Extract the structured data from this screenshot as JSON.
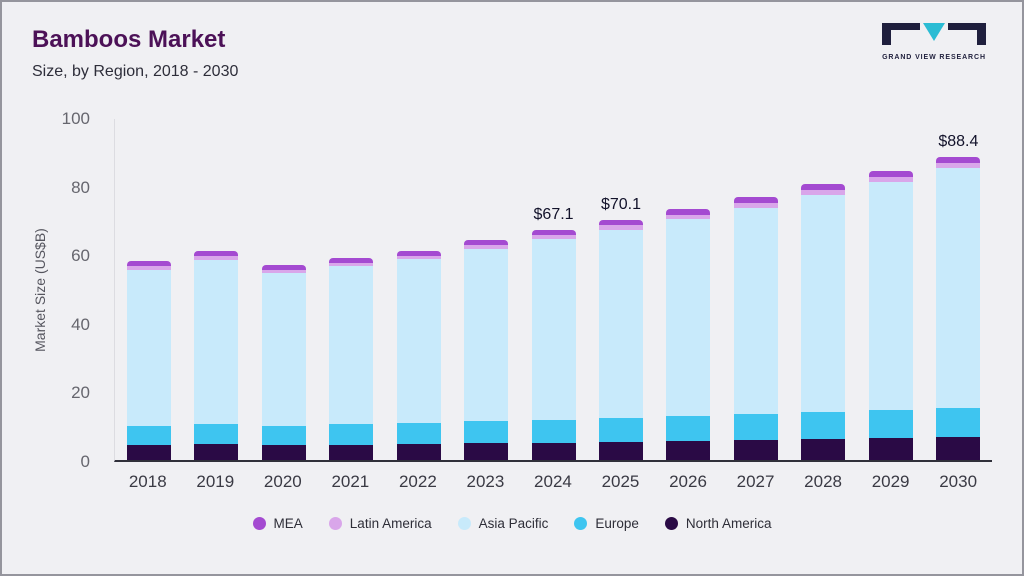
{
  "header": {
    "title": "Bamboos Market",
    "subtitle": "Size, by Region, 2018 - 2030"
  },
  "logo": {
    "text": "GRAND VIEW RESEARCH"
  },
  "chart_data": {
    "type": "bar",
    "stacked": true,
    "title": "Bamboos Market Size, by Region, 2018 - 2030",
    "ylabel": "Market Size (US$B)",
    "ylim": [
      0,
      100
    ],
    "yticks": [
      0,
      20,
      40,
      60,
      80,
      100
    ],
    "grid": false,
    "legend_position": "bottom",
    "categories": [
      "2018",
      "2019",
      "2020",
      "2021",
      "2022",
      "2023",
      "2024",
      "2025",
      "2026",
      "2027",
      "2028",
      "2029",
      "2030"
    ],
    "series": [
      {
        "name": "North America",
        "color": "#2a0a45",
        "values": [
          4.4,
          4.6,
          4.3,
          4.5,
          4.7,
          4.9,
          5.1,
          5.3,
          5.5,
          5.8,
          6.0,
          6.3,
          6.6
        ]
      },
      {
        "name": "Europe",
        "color": "#3ec5f0",
        "values": [
          5.6,
          5.9,
          5.7,
          5.9,
          6.1,
          6.4,
          6.7,
          7.0,
          7.3,
          7.6,
          7.9,
          8.2,
          8.6
        ]
      },
      {
        "name": "Asia Pacific",
        "color": "#c8eafb",
        "values": [
          45.5,
          47.9,
          44.5,
          46.1,
          47.7,
          50.2,
          52.5,
          54.9,
          57.4,
          60.2,
          63.5,
          66.5,
          70.0
        ]
      },
      {
        "name": "Latin America",
        "color": "#d9a6ea",
        "values": [
          1.0,
          1.1,
          1.0,
          1.0,
          1.1,
          1.2,
          1.2,
          1.3,
          1.3,
          1.4,
          1.4,
          1.5,
          1.5
        ]
      },
      {
        "name": "MEA",
        "color": "#a44ad1",
        "values": [
          1.5,
          1.5,
          1.5,
          1.5,
          1.4,
          1.5,
          1.6,
          1.6,
          1.7,
          1.7,
          1.7,
          1.8,
          1.7
        ]
      }
    ],
    "totals": [
      58.0,
      61.0,
      57.0,
      59.0,
      61.0,
      64.2,
      67.1,
      70.1,
      73.2,
      76.7,
      80.5,
      84.3,
      88.4
    ],
    "bar_labels": [
      "",
      "",
      "",
      "",
      "",
      "",
      "$67.1",
      "$70.1",
      "",
      "",
      "",
      "",
      "$88.4"
    ],
    "legend": [
      {
        "label": "MEA",
        "color": "#a44ad1"
      },
      {
        "label": "Latin America",
        "color": "#d9a6ea"
      },
      {
        "label": "Asia Pacific",
        "color": "#c8eafb"
      },
      {
        "label": "Europe",
        "color": "#3ec5f0"
      },
      {
        "label": "North America",
        "color": "#2a0a45"
      }
    ]
  }
}
